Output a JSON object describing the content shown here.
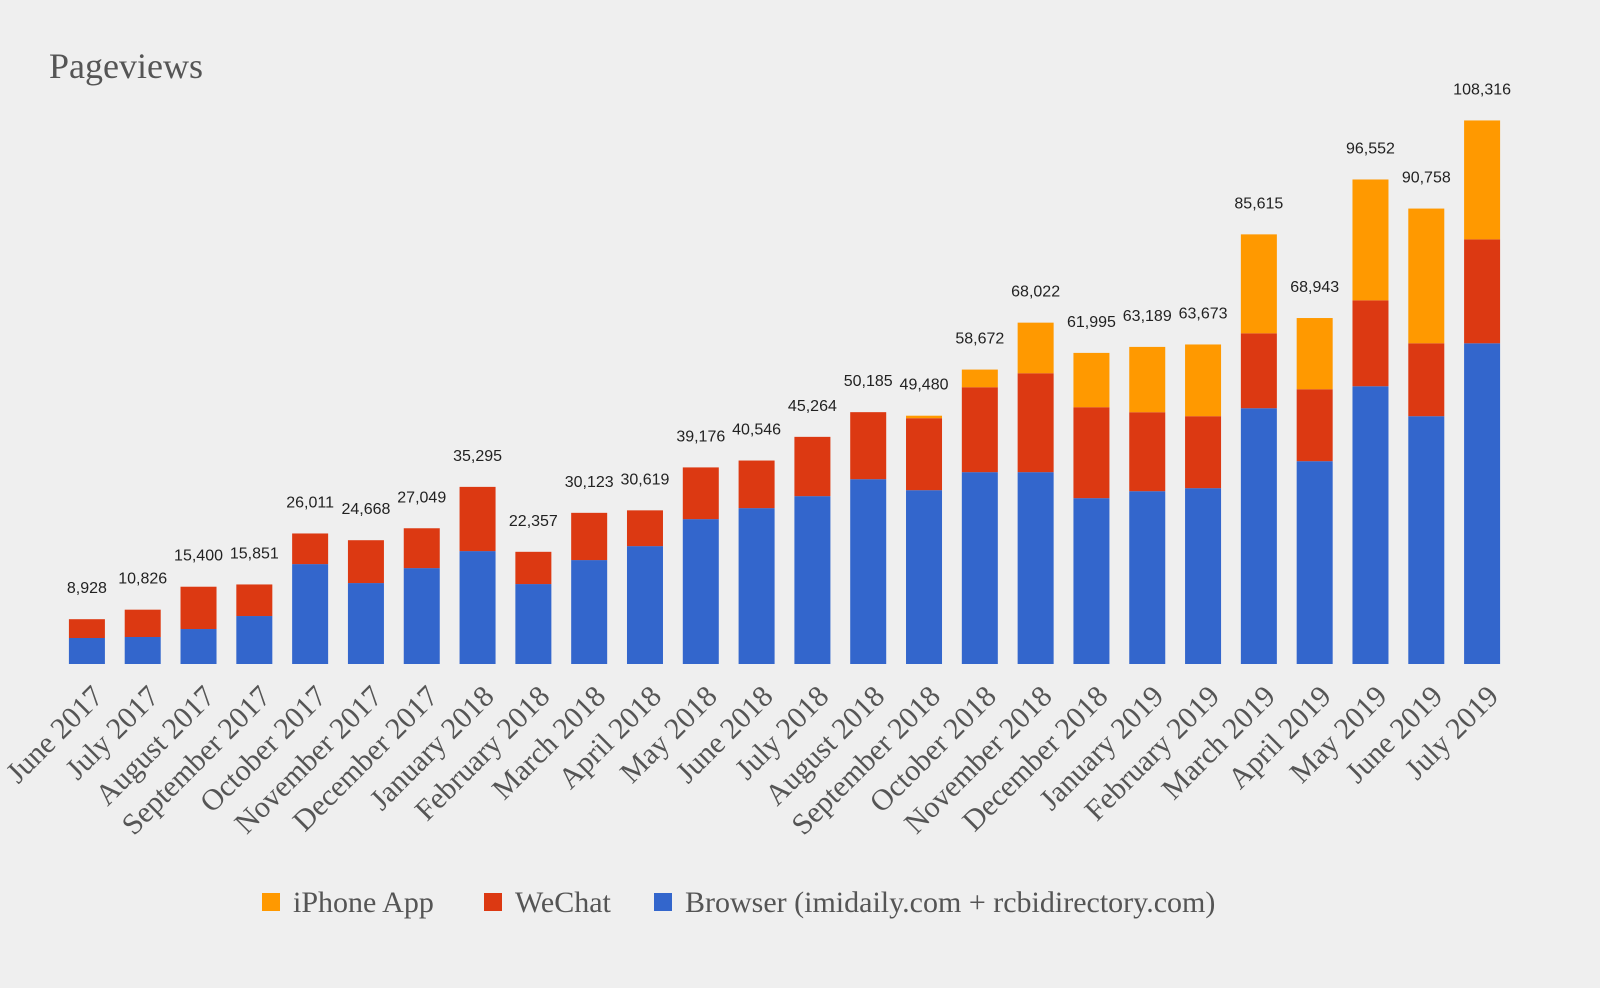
{
  "chart_data": {
    "type": "stacked_bar",
    "title": "Pageviews",
    "categories": [
      "June 2017",
      "July 2017",
      "August 2017",
      "September 2017",
      "October 2017",
      "November 2017",
      "December 2017",
      "January 2018",
      "February 2018",
      "March 2018",
      "April 2018",
      "May 2018",
      "June 2018",
      "July 2018",
      "August 2018",
      "September 2018",
      "October 2018",
      "November 2018",
      "December 2018",
      "January 2019",
      "February 2019",
      "March 2019",
      "April 2019",
      "May 2019",
      "June 2019",
      "July 2019"
    ],
    "series": [
      {
        "name": "iPhone App",
        "color": "#ff9900",
        "values": [
          0,
          0,
          0,
          0,
          0,
          0,
          0,
          0,
          0,
          0,
          0,
          0,
          0,
          0,
          0,
          500,
          3522,
          10082,
          10825,
          13019,
          14293,
          19715,
          14193,
          24082,
          26848,
          23696
        ]
      },
      {
        "name": "WeChat",
        "color": "#dc3912",
        "values": [
          3748,
          5446,
          8430,
          6291,
          6101,
          8538,
          7939,
          12795,
          6427,
          9413,
          7129,
          10306,
          9486,
          11814,
          13355,
          14340,
          16920,
          19710,
          18120,
          15730,
          14340,
          14930,
          14330,
          17120,
          14530,
          20710
        ]
      },
      {
        "name": "Browser (imidaily.com + rcbidirectory.com)",
        "color": "#3366cc",
        "values": [
          5180,
          5380,
          6970,
          9560,
          19910,
          16130,
          19110,
          22500,
          15930,
          20710,
          23490,
          28870,
          31060,
          33450,
          36830,
          34640,
          38230,
          38230,
          33050,
          34440,
          35040,
          50970,
          40420,
          55350,
          49380,
          63910
        ]
      }
    ],
    "totals": [
      8928,
      10826,
      15400,
      15851,
      26011,
      24668,
      27049,
      35295,
      22357,
      30123,
      30619,
      39176,
      40546,
      45264,
      50185,
      49480,
      58672,
      68022,
      61995,
      63189,
      63673,
      85615,
      68943,
      96552,
      90758,
      108316
    ],
    "total_labels": [
      "8,928",
      "10,826",
      "15,400",
      "15,851",
      "26,011",
      "24,668",
      "27,049",
      "35,295",
      "22,357",
      "30,123",
      "30,619",
      "39,176",
      "40,546",
      "45,264",
      "50,185",
      "49,480",
      "58,672",
      "68,022",
      "61,995",
      "63,189",
      "63,673",
      "85,615",
      "68,943",
      "96,552",
      "90,758",
      "108,316"
    ],
    "ylim": [
      0,
      110000
    ],
    "legend": "bottom"
  }
}
